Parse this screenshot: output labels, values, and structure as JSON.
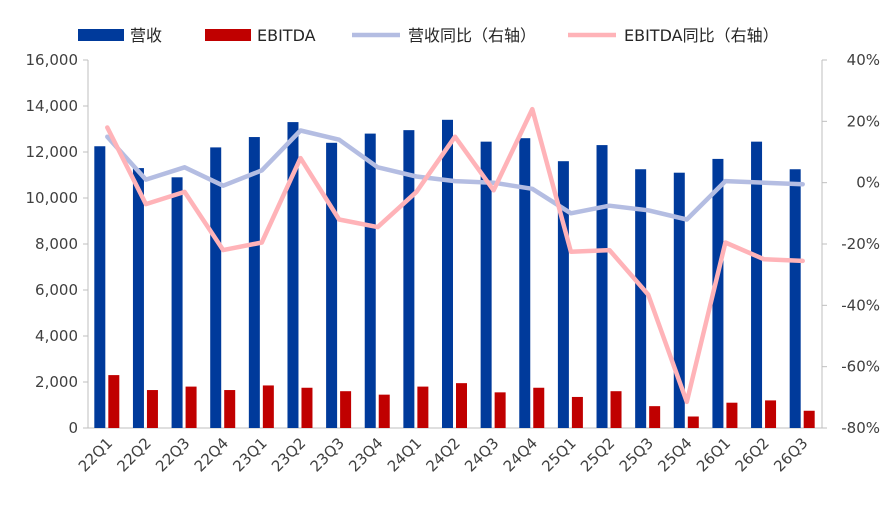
{
  "chart_data": {
    "type": "bar+line",
    "categories": [
      "22Q1",
      "22Q2",
      "22Q3",
      "22Q4",
      "23Q1",
      "23Q2",
      "23Q3",
      "23Q4",
      "24Q1",
      "24Q2",
      "24Q3",
      "24Q4",
      "25Q1",
      "25Q2",
      "25Q3",
      "25Q4",
      "26Q1",
      "26Q2",
      "26Q3"
    ],
    "series": [
      {
        "name": "营收",
        "type": "bar",
        "axis": "left",
        "color": "#003A9B",
        "values": [
          12250,
          11300,
          10900,
          12200,
          12650,
          13300,
          12400,
          12800,
          12950,
          13400,
          12450,
          12600,
          11600,
          12300,
          11250,
          11100,
          11700,
          12450,
          11250
        ]
      },
      {
        "name": "EBITDA",
        "type": "bar",
        "axis": "left",
        "color": "#C00000",
        "values": [
          2300,
          1650,
          1800,
          1650,
          1850,
          1750,
          1600,
          1450,
          1800,
          1950,
          1550,
          1750,
          1350,
          1600,
          950,
          500,
          1100,
          1200,
          750
        ]
      },
      {
        "name": "营收同比（右轴）",
        "type": "line",
        "axis": "right",
        "color": "#B4BDE2",
        "values": [
          15,
          1,
          5,
          -1,
          4,
          17,
          14,
          5,
          2,
          0.5,
          0,
          -2,
          -10,
          -7.5,
          -9,
          -12,
          0.5,
          0,
          -0.5
        ]
      },
      {
        "name": "EBITDA同比（右轴）",
        "type": "line",
        "axis": "right",
        "color": "#FFB3B8",
        "values": [
          18,
          -7,
          -3,
          -22,
          -19.5,
          8,
          -12,
          -14.5,
          -3,
          15,
          -2.5,
          24,
          -22.5,
          -22,
          -36.5,
          -71.5,
          -19.5,
          -25,
          -25.5
        ]
      }
    ],
    "y_left": {
      "min": 0,
      "max": 16000,
      "ticks": [
        "0",
        "2,000",
        "4,000",
        "6,000",
        "8,000",
        "10,000",
        "12,000",
        "14,000",
        "16,000"
      ]
    },
    "y_right": {
      "min": -80,
      "max": 40,
      "ticks": [
        "-80%",
        "-60%",
        "-40%",
        "-20%",
        "0%",
        "20%",
        "40%"
      ]
    },
    "legend": [
      "营收",
      "EBITDA",
      "营收同比（右轴）",
      "EBITDA同比（右轴）"
    ],
    "legend_position": "top",
    "grid": false
  }
}
